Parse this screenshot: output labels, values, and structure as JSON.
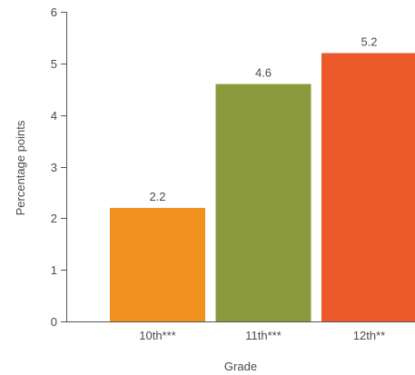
{
  "chart_data": {
    "type": "bar",
    "categories": [
      "10th***",
      "11th***",
      "12th**"
    ],
    "values": [
      2.2,
      4.6,
      5.2
    ],
    "value_labels": [
      "2.2",
      "4.6",
      "5.2"
    ],
    "colors": [
      "#f0901e",
      "#8b9a3c",
      "#ec5a2a"
    ],
    "xlabel": "Grade",
    "ylabel": "Percentage points",
    "ylim": [
      0,
      6
    ],
    "yticks": [
      "0",
      "1",
      "2",
      "3",
      "4",
      "5",
      "6"
    ],
    "grid": false,
    "legend": "none"
  }
}
